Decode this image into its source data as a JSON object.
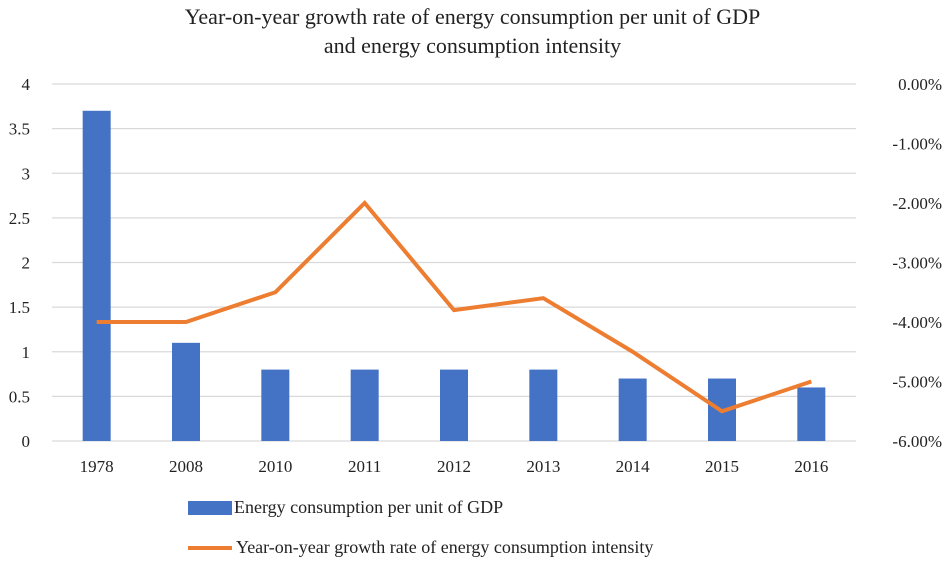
{
  "chart_data": {
    "type": "bar",
    "title": "Year-on-year growth rate of energy consumption per unit of GDP and energy consumption intensity",
    "title_lines": [
      "Year-on-year growth rate of energy consumption per unit of GDP",
      "and energy consumption intensity"
    ],
    "categories": [
      "1978",
      "2008",
      "2010",
      "2011",
      "2012",
      "2013",
      "2014",
      "2015",
      "2016"
    ],
    "series": [
      {
        "name": "Energy consumption per unit of GDP",
        "type": "bar",
        "axis": "left",
        "color": "#4472c4",
        "values": [
          3.7,
          1.1,
          0.8,
          0.8,
          0.8,
          0.8,
          0.7,
          0.7,
          0.6
        ]
      },
      {
        "name": "Year-on-year growth rate of energy consumption intensity",
        "type": "line",
        "axis": "right",
        "color": "#ed7d31",
        "values": [
          -4.0,
          -4.0,
          -3.5,
          -2.0,
          -3.8,
          -3.6,
          -4.5,
          -5.5,
          -5.0
        ]
      }
    ],
    "y_left": {
      "range": [
        0,
        4
      ],
      "ticks": [
        "0",
        "0.5",
        "1",
        "1.5",
        "2",
        "2.5",
        "3",
        "3.5",
        "4"
      ]
    },
    "y_right": {
      "range": [
        -6,
        0
      ],
      "unit": "%",
      "ticks": [
        "-6.00%",
        "-5.00%",
        "-4.00%",
        "-3.00%",
        "-2.00%",
        "-1.00%",
        "0.00%"
      ]
    },
    "grid": true,
    "legend": "bottom"
  }
}
